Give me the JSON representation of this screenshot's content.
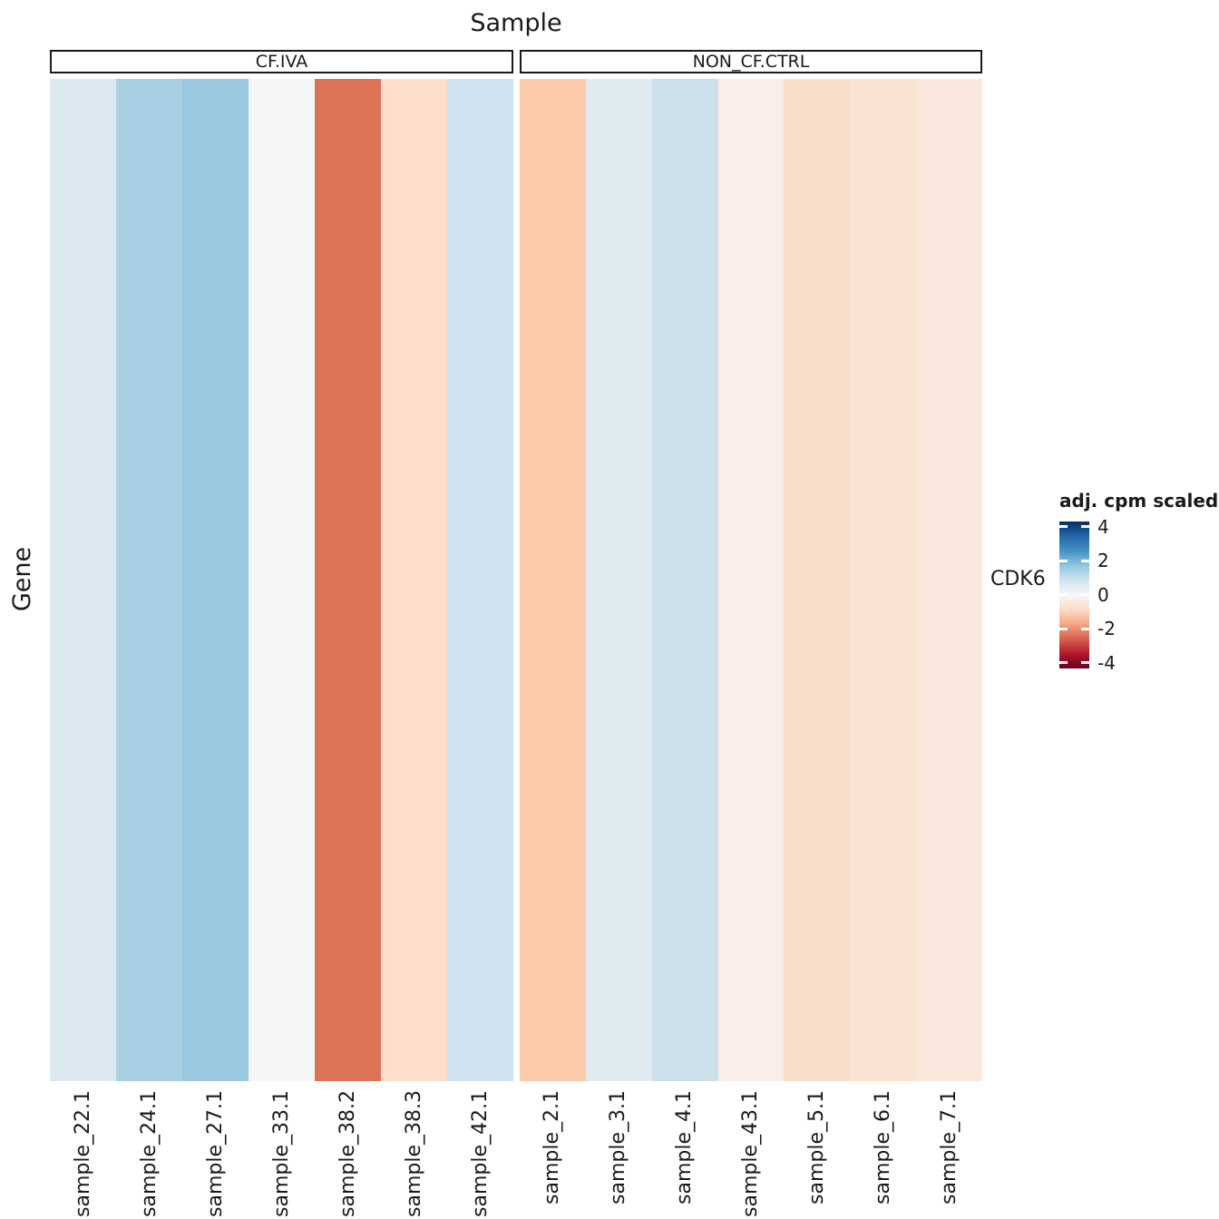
{
  "header": {
    "title": "Sample"
  },
  "axis": {
    "x_title": "Sample",
    "y_title": "Gene"
  },
  "facets": [
    {
      "label": "CF.IVA"
    },
    {
      "label": "NON_CF.CTRL"
    }
  ],
  "legend": {
    "title": "adj. cpm scaled",
    "tick_labels": [
      "4",
      "2",
      "0",
      "-2",
      "-4"
    ],
    "gradient_top_to_bottom": [
      "#053061",
      "#2166ac",
      "#4393c3",
      "#92c5de",
      "#d1e5f0",
      "#f7f7f7",
      "#fddbc7",
      "#f4a582",
      "#d6604d",
      "#b2182b",
      "#67001f"
    ]
  },
  "chart_data": {
    "type": "heatmap",
    "title": "Sample",
    "xlabel": "Sample",
    "ylabel": "Gene",
    "rows": [
      "CDK6"
    ],
    "value_name": "adj. cpm scaled",
    "scale_limits": [
      -4,
      4
    ],
    "facet_groups": [
      "CF.IVA",
      "NON_CF.CTRL"
    ],
    "columns": [
      {
        "sample": "sample_22.1",
        "group": "CF.IVA",
        "value": 0.9,
        "color": "#dde9f1"
      },
      {
        "sample": "sample_24.1",
        "group": "CF.IVA",
        "value": 2.2,
        "color": "#a9cfe3"
      },
      {
        "sample": "sample_27.1",
        "group": "CF.IVA",
        "value": 2.4,
        "color": "#9bc8e1"
      },
      {
        "sample": "sample_33.1",
        "group": "CF.IVA",
        "value": 0.1,
        "color": "#f4f5f6"
      },
      {
        "sample": "sample_38.2",
        "group": "CF.IVA",
        "value": -2.9,
        "color": "#dd7257"
      },
      {
        "sample": "sample_38.3",
        "group": "CF.IVA",
        "value": -0.9,
        "color": "#fbdfcc"
      },
      {
        "sample": "sample_42.1",
        "group": "CF.IVA",
        "value": 1.2,
        "color": "#cfe2ef"
      },
      {
        "sample": "sample_2.1",
        "group": "NON_CF.CTRL",
        "value": -1.6,
        "color": "#fbcaa8"
      },
      {
        "sample": "sample_3.1",
        "group": "NON_CF.CTRL",
        "value": 0.7,
        "color": "#e0eaf1"
      },
      {
        "sample": "sample_4.1",
        "group": "NON_CF.CTRL",
        "value": 1.3,
        "color": "#cde0ec"
      },
      {
        "sample": "sample_43.1",
        "group": "NON_CF.CTRL",
        "value": -0.3,
        "color": "#f9efe8"
      },
      {
        "sample": "sample_5.1",
        "group": "NON_CF.CTRL",
        "value": -1.0,
        "color": "#f9dfca"
      },
      {
        "sample": "sample_6.1",
        "group": "NON_CF.CTRL",
        "value": -0.85,
        "color": "#fbe3d2"
      },
      {
        "sample": "sample_7.1",
        "group": "NON_CF.CTRL",
        "value": -0.6,
        "color": "#fbe8dc"
      }
    ]
  }
}
